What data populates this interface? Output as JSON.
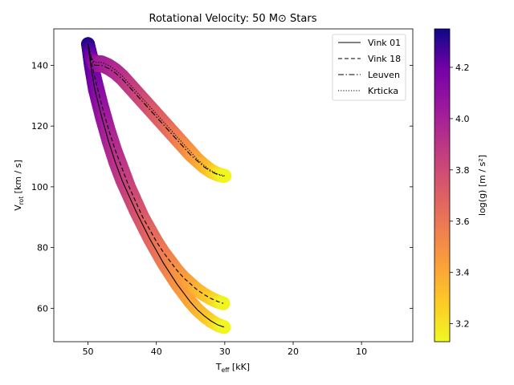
{
  "chart_data": {
    "type": "line",
    "title": "Rotational Velocity: 50 M⊙ Stars",
    "xlabel": {
      "main": "T",
      "sub": "eff",
      "rest": " [kK]"
    },
    "ylabel": {
      "main": "V",
      "sub": "rot",
      "rest": " [km / s]"
    },
    "x_inverted": true,
    "xlim": [
      55,
      2.5
    ],
    "ylim": [
      49,
      152
    ],
    "xticks": [
      50,
      40,
      30,
      20,
      10
    ],
    "yticks": [
      60,
      80,
      100,
      120,
      140
    ],
    "grid": false,
    "legend_position": "top-right",
    "series": [
      {
        "name": "Vink 01",
        "style": "solid",
        "x": [
          50.0,
          49.6,
          49.0,
          48.0,
          47.0,
          46.0,
          45.0,
          44.0,
          43.0,
          42.0,
          41.0,
          40.0,
          39.0,
          38.0,
          37.0,
          36.0,
          35.0,
          34.0,
          33.0,
          32.0,
          31.0,
          30.1
        ],
        "y": [
          147.0,
          140.0,
          132.0,
          123.0,
          115.0,
          108.0,
          102.0,
          97.0,
          92.0,
          87.5,
          83.0,
          79.0,
          75.0,
          71.5,
          68.0,
          65.0,
          62.0,
          59.5,
          57.5,
          55.8,
          54.5,
          53.8
        ],
        "logg": [
          4.33,
          4.26,
          4.18,
          4.08,
          4.0,
          3.94,
          3.89,
          3.84,
          3.79,
          3.74,
          3.69,
          3.64,
          3.59,
          3.55,
          3.5,
          3.46,
          3.42,
          3.38,
          3.33,
          3.28,
          3.21,
          3.14
        ]
      },
      {
        "name": "Vink 18",
        "style": "dashed",
        "x": [
          50.0,
          49.6,
          49.0,
          48.0,
          47.0,
          46.0,
          45.0,
          44.0,
          43.0,
          42.0,
          41.0,
          40.0,
          39.0,
          38.0,
          37.0,
          36.0,
          35.0,
          34.0,
          33.0,
          32.0,
          31.0,
          30.2
        ],
        "y": [
          147.0,
          142.0,
          136.0,
          127.0,
          119.0,
          112.0,
          106.0,
          100.0,
          95.0,
          90.0,
          86.0,
          82.0,
          78.5,
          75.5,
          72.5,
          70.0,
          68.0,
          66.0,
          64.5,
          63.2,
          62.2,
          61.6
        ],
        "logg": [
          4.33,
          4.26,
          4.18,
          4.08,
          4.0,
          3.94,
          3.89,
          3.84,
          3.79,
          3.74,
          3.69,
          3.64,
          3.59,
          3.55,
          3.5,
          3.46,
          3.42,
          3.38,
          3.33,
          3.28,
          3.22,
          3.15
        ]
      },
      {
        "name": "Leuven",
        "style": "dashdot",
        "x": [
          50.0,
          49.5,
          49.0,
          48.0,
          47.0,
          46.0,
          45.0,
          44.0,
          43.0,
          42.0,
          41.0,
          40.0,
          39.0,
          38.0,
          37.0,
          36.0,
          35.0,
          34.0,
          33.0,
          32.0,
          31.0,
          30.2
        ],
        "y": [
          147.0,
          142.0,
          140.0,
          140.0,
          139.0,
          137.5,
          135.5,
          133.0,
          130.5,
          128.0,
          125.5,
          123.0,
          120.5,
          118.0,
          115.5,
          113.0,
          110.5,
          108.5,
          106.5,
          105.0,
          104.0,
          103.5
        ],
        "logg": [
          4.33,
          4.2,
          4.1,
          4.02,
          3.99,
          3.96,
          3.93,
          3.89,
          3.85,
          3.81,
          3.77,
          3.73,
          3.69,
          3.64,
          3.59,
          3.54,
          3.49,
          3.43,
          3.37,
          3.3,
          3.22,
          3.14
        ]
      },
      {
        "name": "Krticka",
        "style": "dotted",
        "x": [
          50.0,
          49.5,
          49.0,
          48.0,
          47.0,
          46.0,
          45.0,
          44.0,
          43.0,
          42.0,
          41.0,
          40.0,
          39.0,
          38.0,
          37.0,
          36.0,
          35.0,
          34.0,
          33.0,
          32.0,
          31.0,
          30.0
        ],
        "y": [
          147.0,
          142.5,
          141.0,
          141.0,
          140.0,
          138.5,
          136.5,
          134.0,
          131.5,
          129.0,
          126.5,
          124.0,
          121.5,
          119.0,
          116.5,
          114.0,
          111.5,
          109.0,
          107.0,
          105.3,
          104.2,
          103.6
        ],
        "logg": [
          4.33,
          4.2,
          4.1,
          4.02,
          3.99,
          3.96,
          3.93,
          3.89,
          3.85,
          3.81,
          3.77,
          3.73,
          3.69,
          3.64,
          3.59,
          3.54,
          3.49,
          3.43,
          3.37,
          3.3,
          3.22,
          3.14
        ]
      }
    ],
    "colorbar": {
      "label": "log(g) [m / s²]",
      "range": [
        3.13,
        4.35
      ],
      "ticks": [
        3.2,
        3.4,
        3.6,
        3.8,
        4.0,
        4.2
      ],
      "tick_labels": [
        "3.2",
        "3.4",
        "3.6",
        "3.8",
        "4.0",
        "4.2"
      ],
      "colormap": "plasma"
    }
  }
}
